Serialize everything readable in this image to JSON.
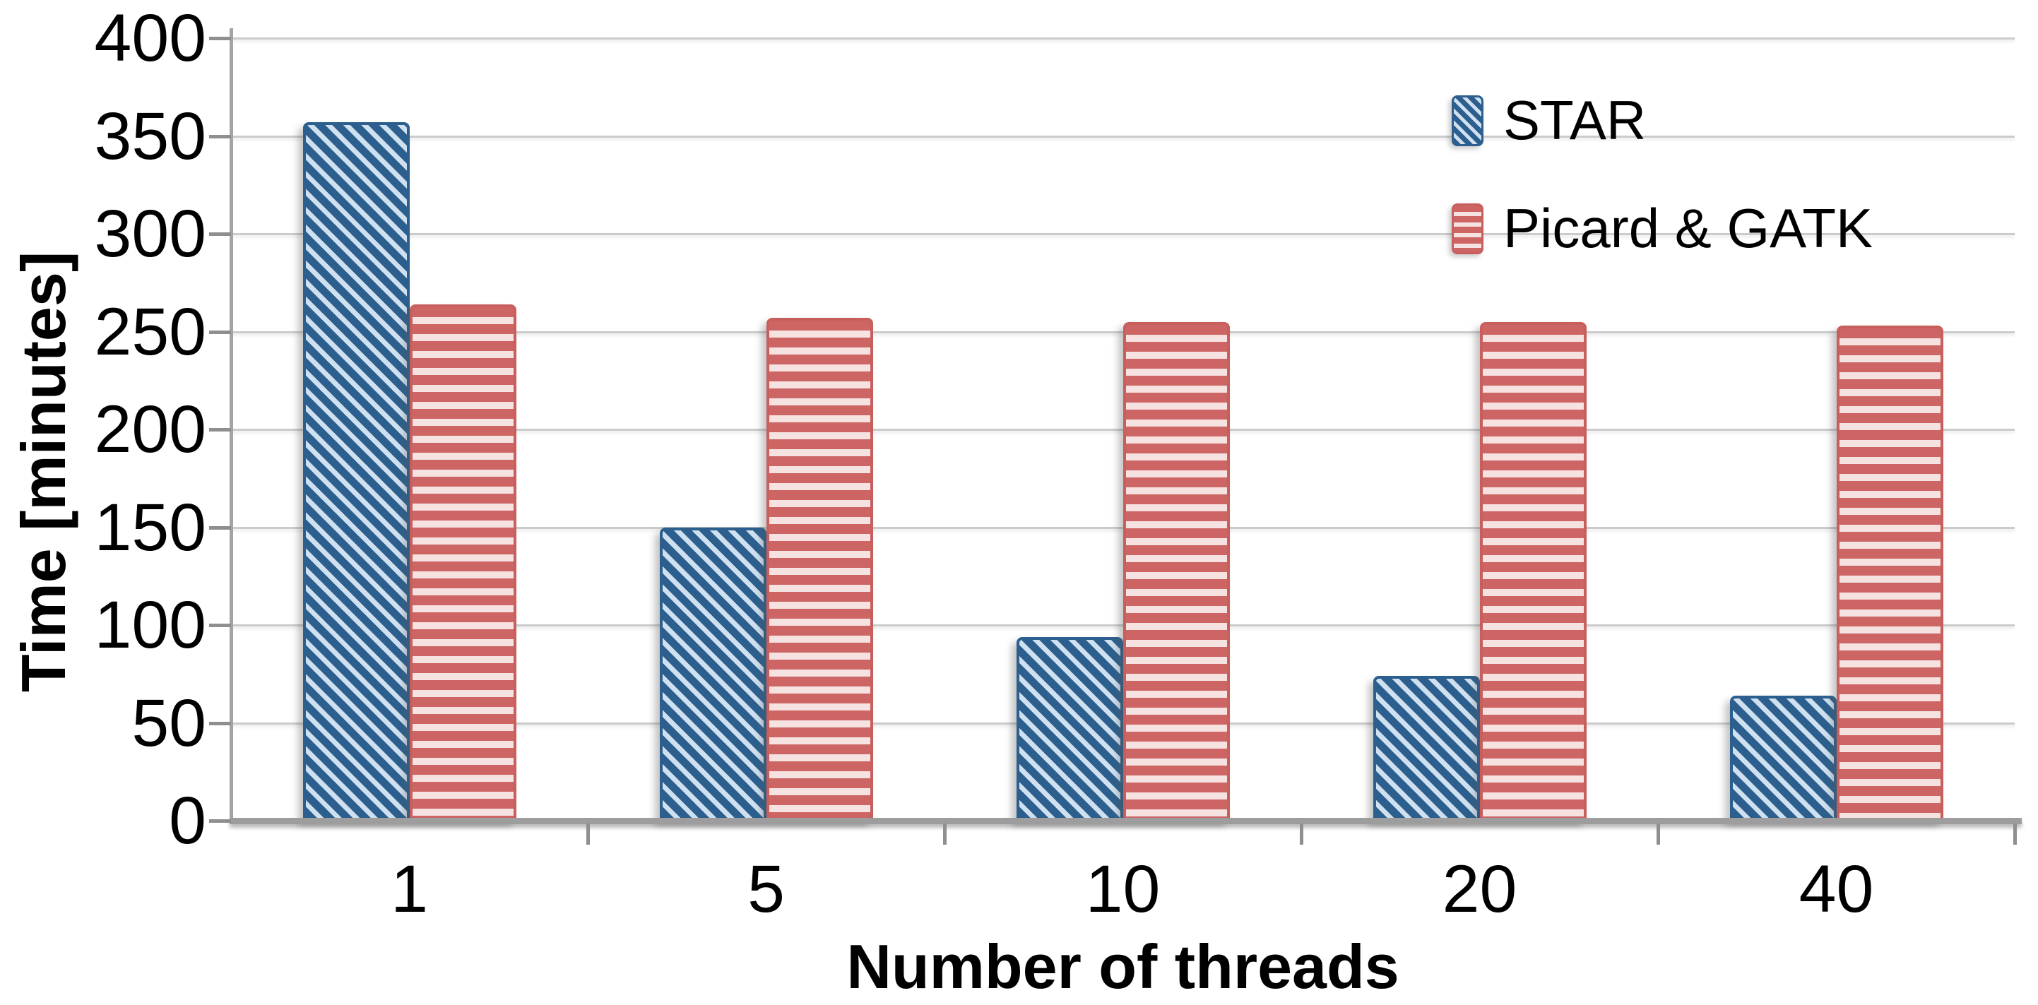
{
  "axes": {
    "y_title": "Time [minutes]",
    "x_title": "Number of threads"
  },
  "legend": {
    "position": "top-right",
    "items": [
      {
        "label": "STAR",
        "pattern": "diagonal-hatch"
      },
      {
        "label": "Picard & GATK",
        "pattern": "horizontal-lines"
      }
    ]
  },
  "colors": {
    "star_dark": "#2c5f8d",
    "star_light": "#cfe0f0",
    "picard_red": "#cc6564",
    "picard_border": "#c75f5d",
    "picard_light": "#f5e2e1",
    "gridline": "#cbcbcb",
    "axis_line": "#a3a3a3",
    "text": "#000000"
  },
  "chart_data": {
    "type": "bar",
    "title": "",
    "xlabel": "Number of threads",
    "ylabel": "Time [minutes]",
    "categories": [
      "1",
      "5",
      "10",
      "20",
      "40"
    ],
    "series": [
      {
        "name": "STAR",
        "values": [
          357,
          150,
          94,
          74,
          64
        ]
      },
      {
        "name": "Picard & GATK",
        "values": [
          264,
          257,
          255,
          255,
          253
        ]
      }
    ],
    "ylim": [
      0,
      400
    ],
    "yticks": [
      0,
      50,
      100,
      150,
      200,
      250,
      300,
      350,
      400
    ],
    "grid": true,
    "legend_position": "top-right"
  }
}
